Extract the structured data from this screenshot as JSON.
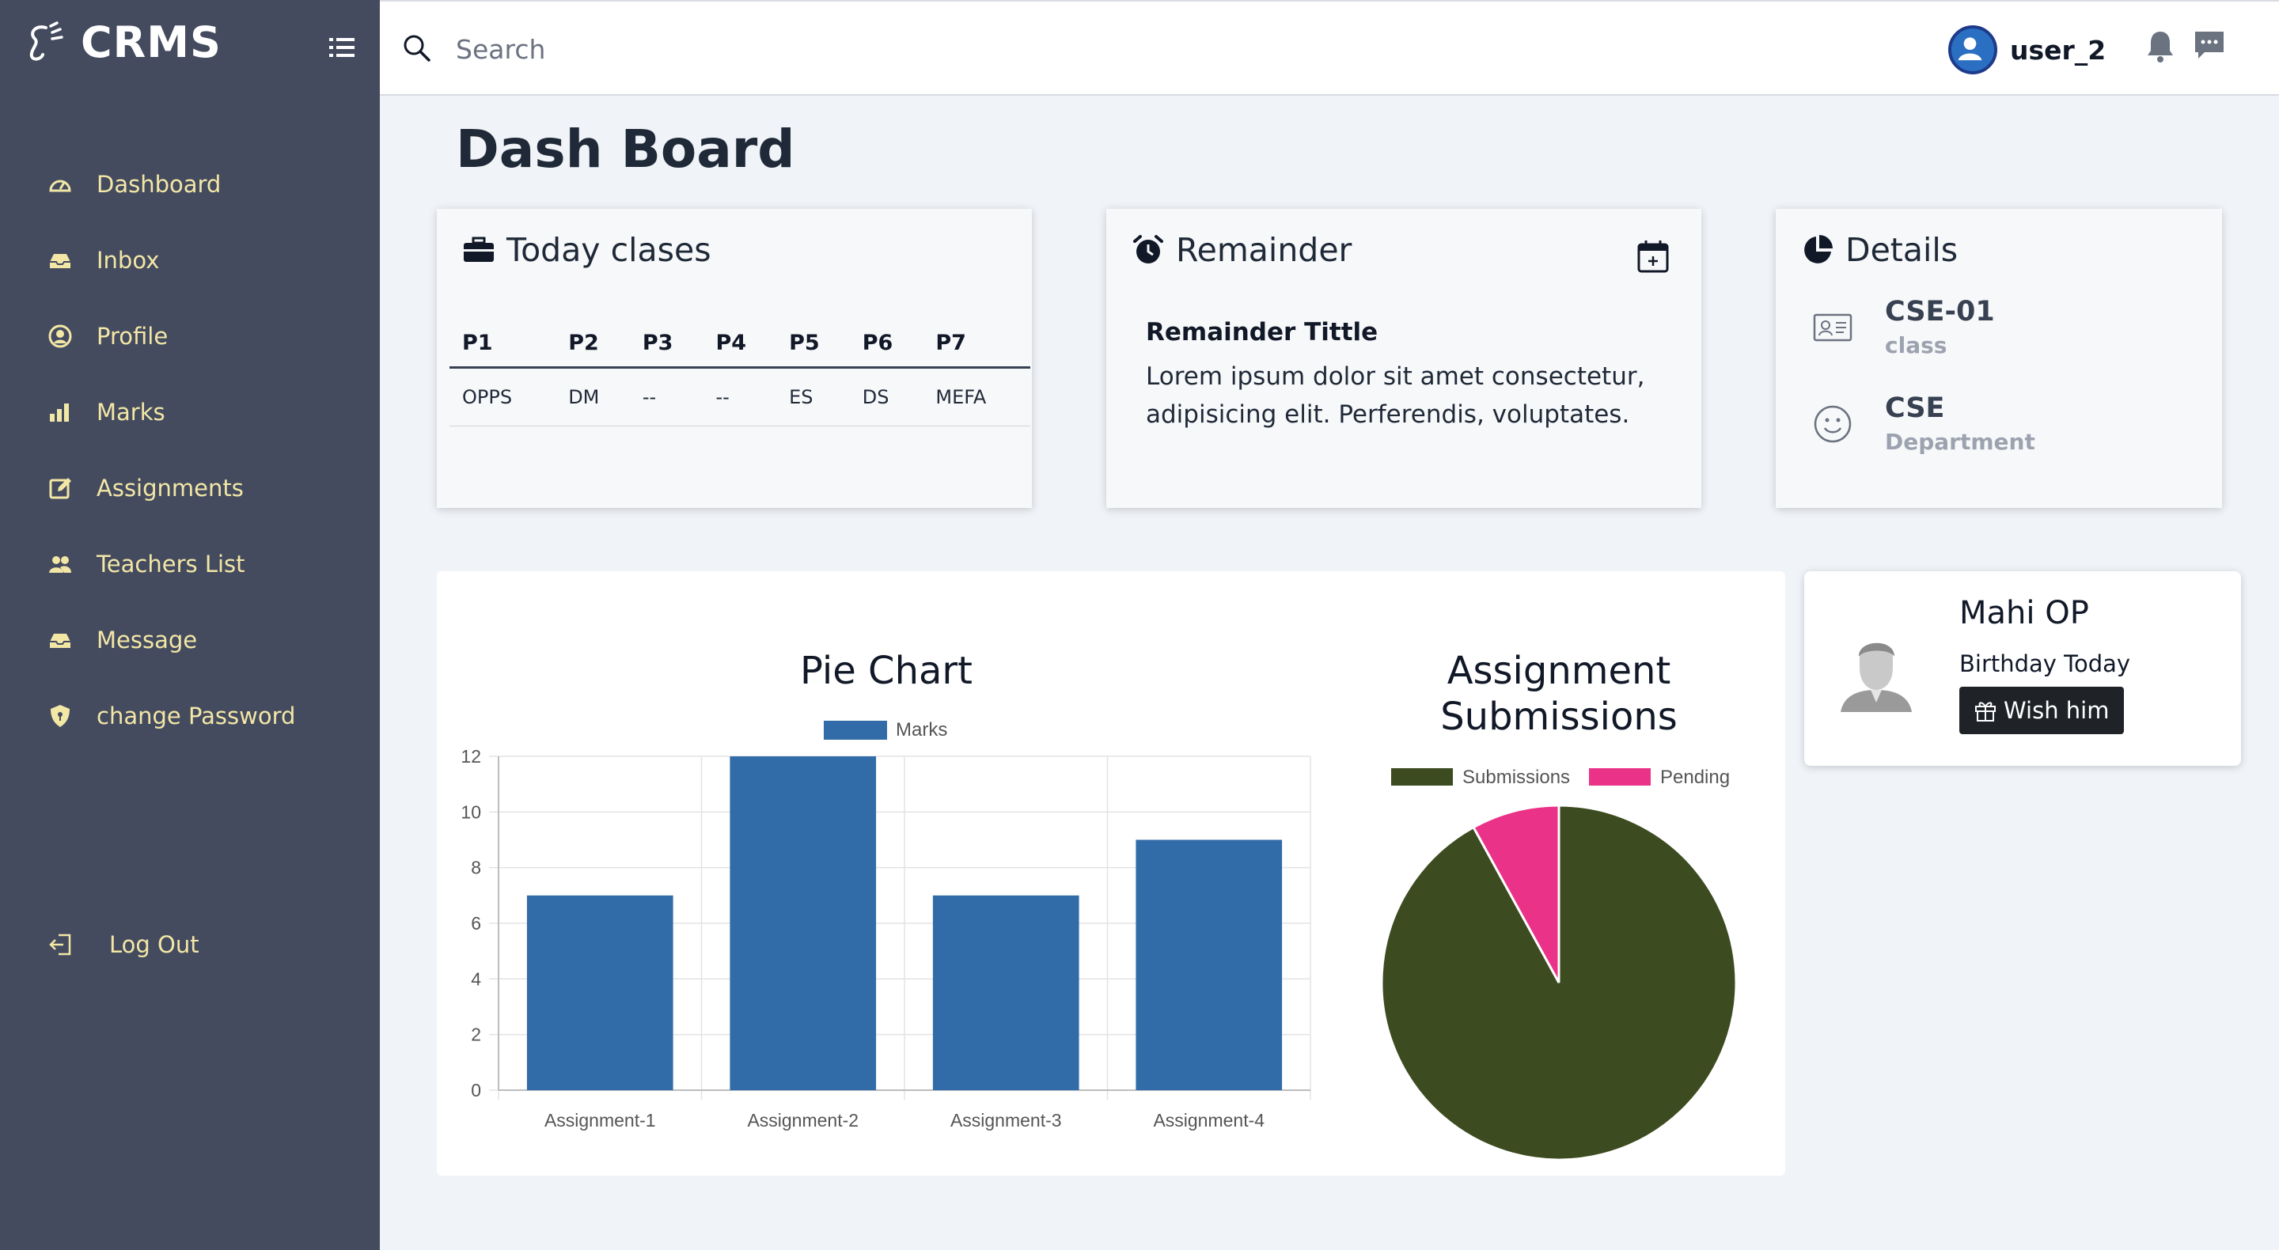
{
  "app": {
    "name": "CRMS"
  },
  "sidebar": {
    "items": [
      {
        "label": "Dashboard",
        "icon": "dashboard-gauge-icon"
      },
      {
        "label": "Inbox",
        "icon": "inbox-icon"
      },
      {
        "label": "Profile",
        "icon": "user-circle-icon"
      },
      {
        "label": "Marks",
        "icon": "bar-chart-icon"
      },
      {
        "label": "Assignments",
        "icon": "edit-icon"
      },
      {
        "label": "Teachers List",
        "icon": "users-icon"
      },
      {
        "label": "Message",
        "icon": "inbox-icon"
      },
      {
        "label": "change Password",
        "icon": "shield-icon"
      }
    ],
    "logout_label": "Log Out"
  },
  "header": {
    "search_placeholder": "Search",
    "username": "user_2"
  },
  "page": {
    "title": "Dash Board"
  },
  "today_classes": {
    "title": "Today clases",
    "headers": [
      "P1",
      "P2",
      "P3",
      "P4",
      "P5",
      "P6",
      "P7"
    ],
    "row": [
      "OPPS",
      "DM",
      "--",
      "--",
      "ES",
      "DS",
      "MEFA"
    ]
  },
  "reminder": {
    "title": "Remainder",
    "subtitle": "Remainder Tittle",
    "body": "Lorem ipsum dolor sit amet consectetur, adipisicing elit. Perferendis, voluptates."
  },
  "details": {
    "title": "Details",
    "rows": [
      {
        "value": "CSE-01",
        "label": "class"
      },
      {
        "value": "CSE",
        "label": "Department"
      }
    ]
  },
  "birthday": {
    "name": "Mahi OP",
    "note": "Birthday Today",
    "button_label": "Wish him"
  },
  "colors": {
    "sidebar_bg": "#444b5f",
    "sidebar_text": "#f3e7a6",
    "bar": "#316ca8",
    "submissions": "#3c4b20",
    "pending": "#ea3388"
  },
  "chart_data": [
    {
      "type": "bar",
      "title": "Pie Chart",
      "categories": [
        "Assignment-1",
        "Assignment-2",
        "Assignment-3",
        "Assignment-4"
      ],
      "series": [
        {
          "name": "Marks",
          "values": [
            7,
            12,
            7,
            9
          ]
        }
      ],
      "ylim": [
        0,
        12
      ],
      "yticks": [
        0,
        2,
        4,
        6,
        8,
        10,
        12
      ],
      "grid": true,
      "legend": "top"
    },
    {
      "type": "pie",
      "title": "Assignment Submissions",
      "labels": [
        "Submissions",
        "Pending"
      ],
      "values": [
        92,
        8
      ],
      "legend": "top"
    }
  ]
}
